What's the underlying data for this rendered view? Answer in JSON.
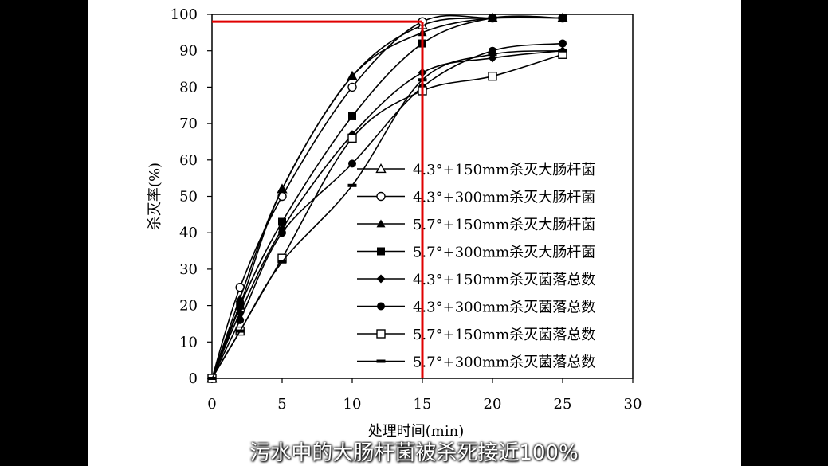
{
  "subtitle": "污水中的大肠杆菌被杀死接近100%",
  "chart_data": {
    "type": "line",
    "xlabel": "处理时间(min)",
    "ylabel": "杀灭率(%)",
    "xlim": [
      0,
      30
    ],
    "ylim": [
      0,
      100
    ],
    "xticks": [
      0,
      5,
      10,
      15,
      20,
      25,
      30
    ],
    "yticks": [
      0,
      10,
      20,
      30,
      40,
      50,
      60,
      70,
      80,
      90,
      100
    ],
    "legend_position": "right",
    "series": [
      {
        "name": "4.3°+150mm杀灭大肠杆菌",
        "marker": "triangle-open",
        "x": [
          0,
          2,
          5,
          10,
          15,
          20,
          25
        ],
        "y": [
          0,
          20,
          52,
          83,
          97,
          99,
          99
        ]
      },
      {
        "name": "4.3°+300mm杀灭大肠杆菌",
        "marker": "circle-open",
        "x": [
          0,
          2,
          5,
          10,
          15,
          20,
          25
        ],
        "y": [
          0,
          25,
          50,
          80,
          98,
          99,
          99
        ]
      },
      {
        "name": "5.7°+150mm杀灭大肠杆菌",
        "marker": "triangle-filled",
        "x": [
          0,
          2,
          5,
          10,
          15,
          20,
          25
        ],
        "y": [
          0,
          22,
          52,
          83,
          95,
          99,
          99
        ]
      },
      {
        "name": "5.7°+300mm杀灭大肠杆菌",
        "marker": "square-filled",
        "x": [
          0,
          2,
          5,
          10,
          15,
          20,
          25
        ],
        "y": [
          0,
          20,
          43,
          72,
          92,
          99,
          99
        ]
      },
      {
        "name": "4.3°+150mm杀灭菌落总数",
        "marker": "diamond-filled",
        "x": [
          0,
          2,
          5,
          10,
          15,
          20,
          25
        ],
        "y": [
          0,
          18,
          41,
          67,
          84,
          88,
          90
        ]
      },
      {
        "name": "4.3°+300mm杀灭菌落总数",
        "marker": "circle-filled",
        "x": [
          0,
          2,
          5,
          10,
          15,
          20,
          25
        ],
        "y": [
          0,
          16,
          40,
          59,
          80,
          90,
          92
        ]
      },
      {
        "name": "5.7°+150mm杀灭菌落总数",
        "marker": "square-open",
        "x": [
          0,
          2,
          5,
          10,
          15,
          20,
          25
        ],
        "y": [
          0,
          13,
          33,
          66,
          79,
          83,
          89
        ]
      },
      {
        "name": "5.7°+300mm杀灭菌落总数",
        "marker": "dash",
        "x": [
          0,
          2,
          5,
          10,
          15,
          20,
          25
        ],
        "y": [
          0,
          13,
          32,
          53,
          82,
          89,
          90
        ]
      }
    ],
    "annotations": [
      {
        "type": "red-guide",
        "x": 15,
        "y": 98
      }
    ],
    "colors": {
      "series": "#000000",
      "guide": "#e00000"
    }
  }
}
